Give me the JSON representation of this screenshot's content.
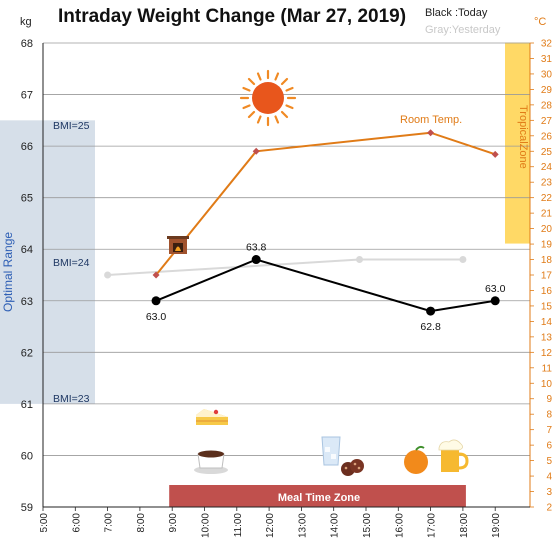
{
  "chart_data": {
    "type": "line",
    "title": "Intraday Weight Change (Mar 27, 2019)",
    "legend": {
      "today": "Black :Today",
      "yesterday": "Gray:Yesterday"
    },
    "y_left_unit": "kg",
    "y_right_unit": "°C",
    "ylim_left": [
      59,
      68
    ],
    "ylim_right": [
      2,
      32
    ],
    "x_ticks": [
      "5:00",
      "6:00",
      "7:00",
      "8:00",
      "9:00",
      "10:00",
      "11:00",
      "12:00",
      "13:00",
      "14:00",
      "15:00",
      "16:00",
      "17:00",
      "18:00",
      "19:00"
    ],
    "x_hours": [
      5,
      6,
      7,
      8,
      9,
      10,
      11,
      12,
      13,
      14,
      15,
      16,
      17,
      18,
      19
    ],
    "y_left_ticks": [
      59,
      60,
      61,
      62,
      63,
      64,
      65,
      66,
      67,
      68
    ],
    "y_right_ticks": [
      2,
      3,
      4,
      5,
      6,
      7,
      8,
      9,
      10,
      11,
      12,
      13,
      14,
      15,
      16,
      17,
      18,
      19,
      20,
      21,
      22,
      23,
      24,
      25,
      26,
      27,
      28,
      29,
      30,
      31,
      32
    ],
    "series": [
      {
        "name": "Today",
        "axis": "left",
        "color": "#000000",
        "x": [
          8.5,
          11.6,
          17.0,
          19.0
        ],
        "y": [
          63.0,
          63.8,
          62.8,
          63.0
        ],
        "labels": [
          "63.0",
          "63.8",
          "62.8",
          "63.0"
        ]
      },
      {
        "name": "Yesterday",
        "axis": "left",
        "color": "#d9d9d9",
        "x": [
          7.0,
          14.8,
          18.0
        ],
        "y": [
          63.5,
          63.8,
          63.8
        ]
      },
      {
        "name": "Room Temp.",
        "axis": "right",
        "color": "#e07b17",
        "x": [
          8.5,
          11.6,
          17.0,
          19.0
        ],
        "y": [
          17.0,
          25.0,
          26.2,
          24.8
        ]
      }
    ],
    "bmi_lines": [
      {
        "label": "BMI=25",
        "kg": 66.2
      },
      {
        "label": "BMI=24",
        "kg": 63.85
      },
      {
        "label": "BMI=23",
        "kg": 60.95
      }
    ],
    "optimal_range": {
      "label": "Optimal Range",
      "from": 61.0,
      "to": 66.5,
      "color": "#d6dfe9"
    },
    "tropical_zone": {
      "label": "TropicalZone",
      "from_c": 19,
      "to_c": 32,
      "color": "#ffd966"
    },
    "meal_zone": {
      "label": "Meal Time Zone",
      "from": 9.0,
      "to": 18.0,
      "color": "#c0504d"
    },
    "grid": true,
    "icons": [
      "sun-icon",
      "fireplace-icon",
      "cake-icon",
      "coffee-icon",
      "water-glass-icon",
      "cookies-icon",
      "orange-icon",
      "beer-icon"
    ]
  }
}
